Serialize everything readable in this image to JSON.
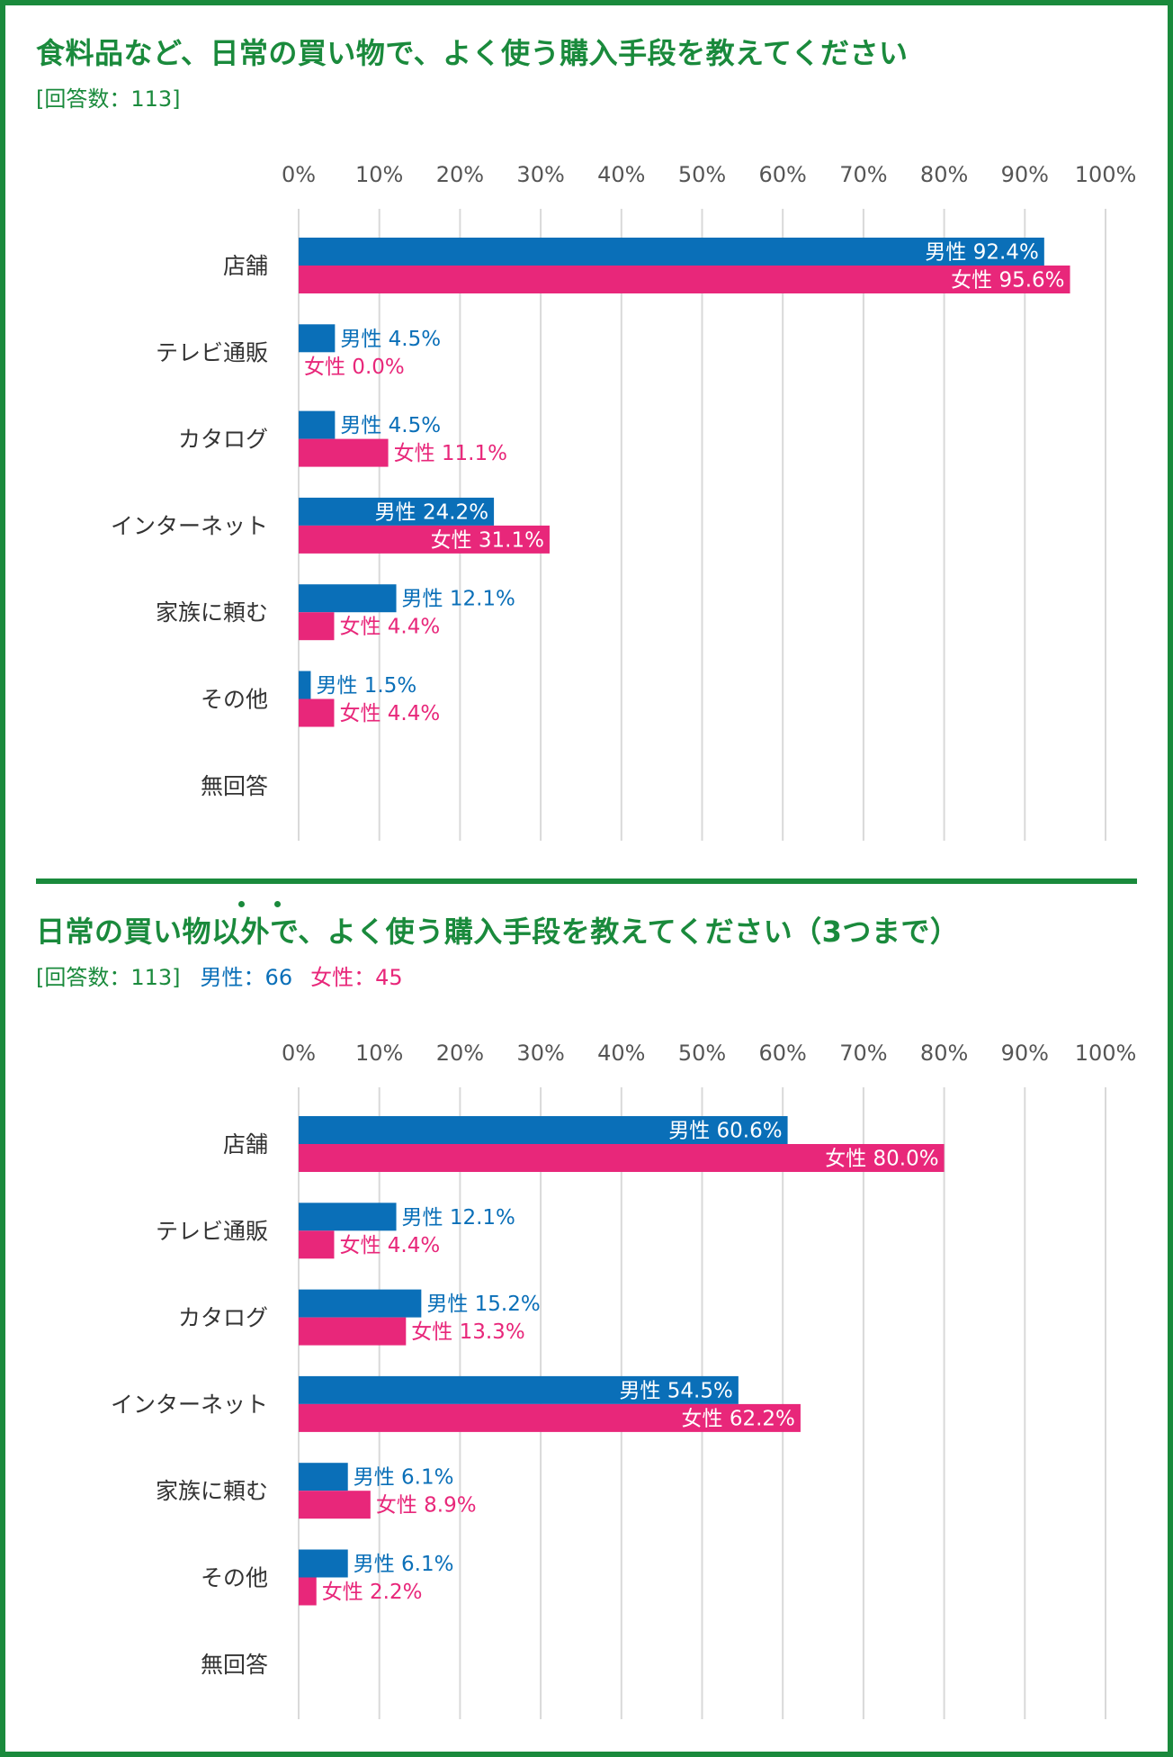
{
  "colors": {
    "frame": "#1a8a3c",
    "male": "#0a6fb8",
    "female": "#e8277a",
    "grid": "#d9d9d9"
  },
  "legend": {
    "male": "男性",
    "female": "女性"
  },
  "chart_data": [
    {
      "type": "bar",
      "orientation": "horizontal",
      "title": "食料品など、日常の買い物で、よく使う購入手段を教えてください",
      "subtitle": "[回答数：113]",
      "xlim": [
        0,
        100
      ],
      "ticks": [
        "0%",
        "10%",
        "20%",
        "30%",
        "40%",
        "50%",
        "60%",
        "70%",
        "80%",
        "90%",
        "100%"
      ],
      "categories": [
        "店舗",
        "テレビ通販",
        "カタログ",
        "インターネット",
        "家族に頼む",
        "その他",
        "無回答"
      ],
      "series": [
        {
          "name": "男性",
          "values": [
            92.4,
            4.5,
            4.5,
            24.2,
            12.1,
            1.5,
            null
          ]
        },
        {
          "name": "女性",
          "values": [
            95.6,
            0.0,
            11.1,
            31.1,
            4.4,
            4.4,
            null
          ]
        }
      ]
    },
    {
      "type": "bar",
      "orientation": "horizontal",
      "title": "日常の買い物以外で、よく使う購入手段を教えてください（3つまで）",
      "subtitle": "[回答数：113]",
      "subtitle_male": "男性：66",
      "subtitle_female": "女性：45",
      "xlim": [
        0,
        100
      ],
      "ticks": [
        "0%",
        "10%",
        "20%",
        "30%",
        "40%",
        "50%",
        "60%",
        "70%",
        "80%",
        "90%",
        "100%"
      ],
      "categories": [
        "店舗",
        "テレビ通販",
        "カタログ",
        "インターネット",
        "家族に頼む",
        "その他",
        "無回答"
      ],
      "series": [
        {
          "name": "男性",
          "values": [
            60.6,
            12.1,
            15.2,
            54.5,
            6.1,
            6.1,
            null
          ]
        },
        {
          "name": "女性",
          "values": [
            80.0,
            4.4,
            13.3,
            62.2,
            8.9,
            2.2,
            null
          ]
        }
      ]
    }
  ]
}
